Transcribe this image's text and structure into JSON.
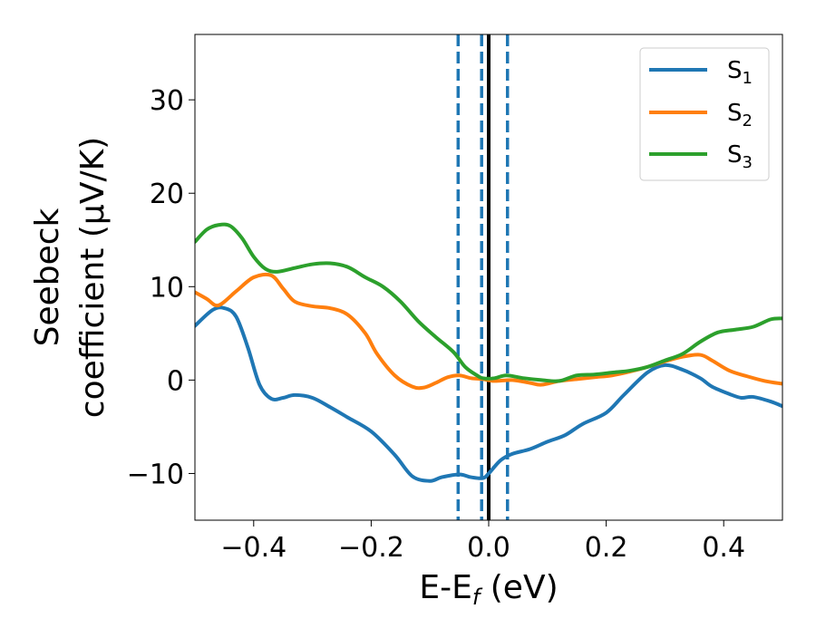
{
  "chart_data": {
    "type": "line",
    "title": "",
    "xlabel": "E-E",
    "xlabel_sub": "f",
    "xlabel_unit": " (eV)",
    "ylabel_line1": "Seebeck",
    "ylabel_line2": "coefficient  (μV/K)",
    "xlim": [
      -0.5,
      0.5
    ],
    "ylim": [
      -15,
      37
    ],
    "xticks": [
      -0.4,
      -0.2,
      0.0,
      0.2,
      0.4
    ],
    "xtick_labels": [
      "−0.4",
      "−0.2",
      "0.0",
      "0.2",
      "0.4"
    ],
    "yticks": [
      -10,
      0,
      10,
      20,
      30
    ],
    "ytick_labels": [
      "−10",
      "0",
      "10",
      "20",
      "30"
    ],
    "grid": false,
    "legend_position": "top-right",
    "vlines": [
      {
        "x": 0.0,
        "style": "solid",
        "color": "#000000"
      },
      {
        "x": -0.052,
        "style": "dashed",
        "color": "#1f77b4"
      },
      {
        "x": -0.012,
        "style": "dashed",
        "color": "#1f77b4"
      },
      {
        "x": 0.032,
        "style": "dashed",
        "color": "#1f77b4"
      }
    ],
    "series": [
      {
        "name": "S",
        "name_sub": "1",
        "color": "#1f77b4",
        "x": [
          -0.5,
          -0.47,
          -0.45,
          -0.43,
          -0.41,
          -0.39,
          -0.37,
          -0.35,
          -0.33,
          -0.3,
          -0.27,
          -0.24,
          -0.2,
          -0.16,
          -0.13,
          -0.1,
          -0.08,
          -0.05,
          -0.03,
          -0.01,
          0.0,
          0.02,
          0.04,
          0.07,
          0.1,
          0.13,
          0.16,
          0.2,
          0.23,
          0.27,
          0.3,
          0.33,
          0.36,
          0.38,
          0.41,
          0.43,
          0.45,
          0.48,
          0.5
        ],
        "y": [
          5.8,
          7.5,
          7.7,
          6.8,
          3.5,
          -0.5,
          -2.0,
          -1.9,
          -1.6,
          -1.9,
          -2.9,
          -4.0,
          -5.5,
          -8.0,
          -10.3,
          -10.8,
          -10.4,
          -10.1,
          -10.4,
          -10.5,
          -10.0,
          -8.6,
          -7.9,
          -7.4,
          -6.6,
          -5.9,
          -4.7,
          -3.5,
          -1.6,
          0.8,
          1.6,
          1.1,
          0.2,
          -0.7,
          -1.5,
          -1.9,
          -1.8,
          -2.3,
          -2.8
        ]
      },
      {
        "name": "S",
        "name_sub": "2",
        "color": "#ff7f0e",
        "x": [
          -0.5,
          -0.48,
          -0.46,
          -0.43,
          -0.4,
          -0.37,
          -0.35,
          -0.33,
          -0.3,
          -0.27,
          -0.24,
          -0.21,
          -0.19,
          -0.16,
          -0.13,
          -0.11,
          -0.09,
          -0.07,
          -0.05,
          -0.03,
          -0.01,
          0.01,
          0.04,
          0.07,
          0.09,
          0.12,
          0.15,
          0.18,
          0.21,
          0.24,
          0.27,
          0.3,
          0.33,
          0.36,
          0.38,
          0.41,
          0.44,
          0.47,
          0.5
        ],
        "y": [
          9.4,
          8.7,
          8.0,
          9.5,
          11.0,
          11.2,
          9.8,
          8.4,
          7.9,
          7.7,
          7.0,
          5.0,
          2.8,
          0.5,
          -0.7,
          -0.8,
          -0.3,
          0.3,
          0.5,
          0.2,
          0.1,
          -0.1,
          0.0,
          -0.3,
          -0.5,
          -0.1,
          0.1,
          0.3,
          0.5,
          0.9,
          1.4,
          2.0,
          2.5,
          2.7,
          2.1,
          1.0,
          0.4,
          -0.1,
          -0.4
        ]
      },
      {
        "name": "S",
        "name_sub": "3",
        "color": "#2ca02c",
        "x": [
          -0.5,
          -0.48,
          -0.46,
          -0.44,
          -0.42,
          -0.4,
          -0.38,
          -0.36,
          -0.33,
          -0.3,
          -0.27,
          -0.24,
          -0.21,
          -0.18,
          -0.15,
          -0.12,
          -0.09,
          -0.06,
          -0.04,
          -0.02,
          -0.01,
          0.01,
          0.03,
          0.06,
          0.09,
          0.12,
          0.15,
          0.18,
          0.21,
          0.24,
          0.27,
          0.3,
          0.33,
          0.36,
          0.39,
          0.42,
          0.45,
          0.48,
          0.5
        ],
        "y": [
          14.8,
          16.1,
          16.6,
          16.5,
          15.2,
          13.2,
          11.9,
          11.6,
          12.0,
          12.4,
          12.5,
          12.1,
          11.0,
          10.0,
          8.4,
          6.3,
          4.6,
          3.0,
          1.4,
          0.5,
          0.2,
          0.2,
          0.5,
          0.2,
          0.0,
          -0.1,
          0.5,
          0.6,
          0.8,
          1.0,
          1.4,
          2.1,
          2.8,
          4.1,
          5.1,
          5.4,
          5.7,
          6.5,
          6.6
        ]
      }
    ]
  }
}
